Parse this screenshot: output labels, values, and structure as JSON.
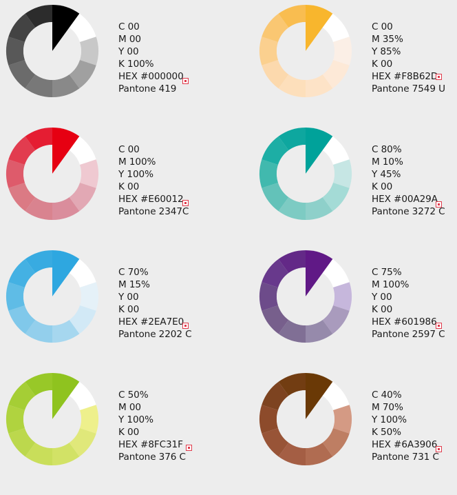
{
  "swatches": [
    {
      "name": "black",
      "lines": [
        "C 00",
        "M 00",
        "Y 00",
        "K 100%",
        "HEX #000000",
        "Pantone 419"
      ],
      "segments": [
        "#000000",
        "#ffffff",
        "#c8c8c8",
        "#a0a0a0",
        "#898989",
        "#787878",
        "#6b6b6b",
        "#585858",
        "#434343",
        "#2c2c2c"
      ]
    },
    {
      "name": "orange",
      "lines": [
        "C 00",
        "M 35%",
        "Y 85%",
        "K 00",
        "HEX #F8B62D",
        "Pantone 7549 U"
      ],
      "segments": [
        "#F8B62D",
        "#ffffff",
        "#fbefe6",
        "#fde9d7",
        "#fde3c7",
        "#fddfbb",
        "#fcd9ad",
        "#fbd08f",
        "#fac772",
        "#f9bd50"
      ]
    },
    {
      "name": "red",
      "lines": [
        "C 00",
        "M 100%",
        "Y 100%",
        "K 00",
        "HEX #E60012",
        "Pantone 2347C"
      ],
      "segments": [
        "#E60012",
        "#ffffff",
        "#efc9d1",
        "#e2a8b4",
        "#da8d9c",
        "#d9838f",
        "#db7a84",
        "#de5b6b",
        "#e23c4f",
        "#e51d32"
      ]
    },
    {
      "name": "teal",
      "lines": [
        "C 80%",
        "M 10%",
        "Y 45%",
        "K 00",
        "HEX #00A29A",
        "Pantone 3272 C"
      ],
      "segments": [
        "#00A29A",
        "#ffffff",
        "#c6e6e4",
        "#a4dbd6",
        "#8ed0ca",
        "#7dcbc3",
        "#63c2b9",
        "#41b9ae",
        "#1daea5",
        "#0ea79f"
      ]
    },
    {
      "name": "blue",
      "lines": [
        "C 70%",
        "M 15%",
        "Y 00",
        "K 00",
        "HEX #2EA7E0",
        "Pantone 2202 C"
      ],
      "segments": [
        "#2EA7E0",
        "#ffffff",
        "#e5f1f8",
        "#d2e9f6",
        "#a6d7ef",
        "#93cfec",
        "#80c8ea",
        "#5fbce6",
        "#44b1e3",
        "#38abe1"
      ]
    },
    {
      "name": "purple",
      "lines": [
        "C 75%",
        "M 100%",
        "Y 00",
        "K 00",
        "HEX #601986",
        "Pantone 2597 C"
      ],
      "segments": [
        "#601986",
        "#ffffff",
        "#c6b7dc",
        "#a99bbd",
        "#968aab",
        "#806f95",
        "#775f8c",
        "#6d4b8a",
        "#68398c",
        "#632987"
      ]
    },
    {
      "name": "green",
      "lines": [
        "C 50%",
        "M 00",
        "Y 100%",
        "K 00",
        "HEX #8FC31F",
        "Pantone 376 C"
      ],
      "segments": [
        "#8FC31F",
        "#ffffff",
        "#eef08c",
        "#e0e87a",
        "#d2e266",
        "#c9de5a",
        "#bcd84d",
        "#b0d33f",
        "#a5ce35",
        "#98c828"
      ]
    },
    {
      "name": "brown",
      "lines": [
        "C 40%",
        "M 70%",
        "Y 100%",
        "K 50%",
        "HEX #6A3906",
        "Pantone 731 C"
      ],
      "segments": [
        "#6A3906",
        "#ffffff",
        "#d49a84",
        "#be7e63",
        "#b06c51",
        "#a45e44",
        "#985437",
        "#8d4b2b",
        "#7d4320",
        "#723d12"
      ]
    }
  ]
}
